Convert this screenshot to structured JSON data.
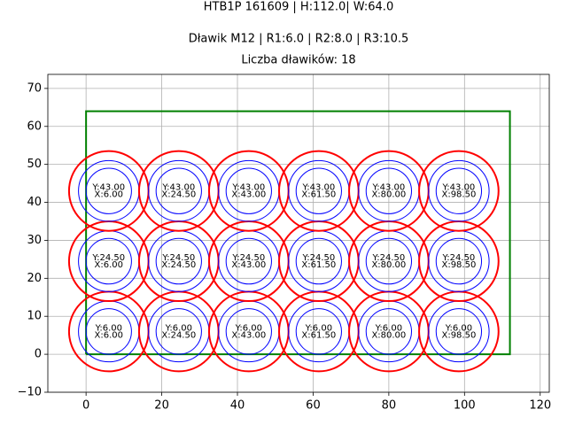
{
  "chart_data": {
    "type": "circles",
    "title": "HTB1P 161609 | H:112.0| W:64.0",
    "subtitle": "Dławik M12 | R1:6.0 | R2:8.0 | R3:10.5",
    "annotation": "Liczba dławików: 18",
    "xlim": [
      -10.1,
      122.4
    ],
    "ylim": [
      -10,
      73.7
    ],
    "xticks": [
      0,
      20,
      40,
      60,
      80,
      100,
      120
    ],
    "yticks": [
      {
        "value": -10,
        "label": "−10"
      },
      0,
      10,
      20,
      30,
      40,
      50,
      60,
      70
    ],
    "grid": true,
    "outline": {
      "x": [
        0,
        112,
        112,
        0,
        0
      ],
      "y": [
        0,
        0,
        64,
        64,
        0
      ],
      "color": "#008000"
    },
    "radii": [
      {
        "r": 6.0,
        "color": "#0000ff"
      },
      {
        "r": 8.0,
        "color": "#0000ff"
      },
      {
        "r": 10.5,
        "color": "#ff0000"
      }
    ],
    "points": [
      {
        "x": 6,
        "y": 6,
        "x_label": "X:6.00",
        "y_label": "Y:6.00"
      },
      {
        "x": 24.5,
        "y": 6,
        "x_label": "X:24.50",
        "y_label": "Y:6.00"
      },
      {
        "x": 43,
        "y": 6,
        "x_label": "X:43.00",
        "y_label": "Y:6.00"
      },
      {
        "x": 61.5,
        "y": 6,
        "x_label": "X:61.50",
        "y_label": "Y:6.00"
      },
      {
        "x": 80,
        "y": 6,
        "x_label": "X:80.00",
        "y_label": "Y:6.00"
      },
      {
        "x": 98.5,
        "y": 6,
        "x_label": "X:98.50",
        "y_label": "Y:6.00"
      },
      {
        "x": 6,
        "y": 24.5,
        "x_label": "X:6.00",
        "y_label": "Y:24.50"
      },
      {
        "x": 24.5,
        "y": 24.5,
        "x_label": "X:24.50",
        "y_label": "Y:24.50"
      },
      {
        "x": 43,
        "y": 24.5,
        "x_label": "X:43.00",
        "y_label": "Y:24.50"
      },
      {
        "x": 61.5,
        "y": 24.5,
        "x_label": "X:61.50",
        "y_label": "Y:24.50"
      },
      {
        "x": 80,
        "y": 24.5,
        "x_label": "X:80.00",
        "y_label": "Y:24.50"
      },
      {
        "x": 98.5,
        "y": 24.5,
        "x_label": "X:98.50",
        "y_label": "Y:24.50"
      },
      {
        "x": 6,
        "y": 43,
        "x_label": "X:6.00",
        "y_label": "Y:43.00"
      },
      {
        "x": 24.5,
        "y": 43,
        "x_label": "X:24.50",
        "y_label": "Y:43.00"
      },
      {
        "x": 43,
        "y": 43,
        "x_label": "X:43.00",
        "y_label": "Y:43.00"
      },
      {
        "x": 61.5,
        "y": 43,
        "x_label": "X:61.50",
        "y_label": "Y:43.00"
      },
      {
        "x": 80,
        "y": 43,
        "x_label": "X:80.00",
        "y_label": "Y:43.00"
      },
      {
        "x": 98.5,
        "y": 43,
        "x_label": "X:98.50",
        "y_label": "Y:43.00"
      }
    ]
  }
}
